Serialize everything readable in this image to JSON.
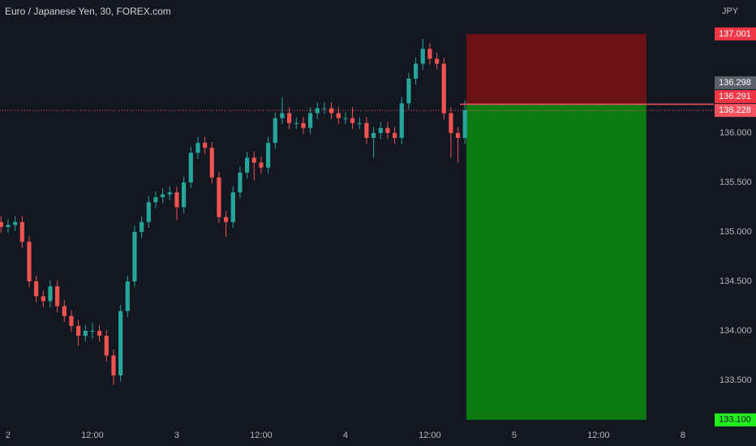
{
  "chart_data": {
    "type": "candlestick",
    "title": "Euro / Japanese Yen, 30, FOREX.com",
    "currency": "JPY",
    "up_color": "#26a69a",
    "down_color": "#ef5350",
    "x": [
      -1,
      0,
      1,
      2,
      3,
      4,
      5,
      6,
      7,
      8,
      9,
      10,
      11,
      12,
      13,
      14,
      15,
      16,
      17,
      18,
      19,
      20,
      21,
      22,
      23,
      24,
      25,
      26,
      27,
      28,
      29,
      30,
      31,
      32,
      33,
      34,
      35,
      36,
      37,
      38,
      39,
      40,
      41,
      42,
      43,
      44,
      45,
      46,
      47,
      48,
      49,
      50,
      51,
      52,
      53,
      54,
      55,
      56,
      57,
      58,
      59,
      60,
      61,
      62,
      63,
      64,
      65
    ],
    "open": [
      135.1,
      135.05,
      135.07,
      135.1,
      134.9,
      134.5,
      134.35,
      134.3,
      134.45,
      134.25,
      134.15,
      134.05,
      133.95,
      134.0,
      134.0,
      133.95,
      133.75,
      133.55,
      134.2,
      134.5,
      135.0,
      135.1,
      135.3,
      135.35,
      135.38,
      135.4,
      135.25,
      135.5,
      135.8,
      135.9,
      135.85,
      135.55,
      135.15,
      135.1,
      135.4,
      135.6,
      135.75,
      135.7,
      135.65,
      135.9,
      136.15,
      136.2,
      136.1,
      136.1,
      136.05,
      136.2,
      136.25,
      136.25,
      136.2,
      136.15,
      136.15,
      136.1,
      136.1,
      135.95,
      136.0,
      136.05,
      136.0,
      135.95,
      136.3,
      136.55,
      136.7,
      136.85,
      136.75,
      136.7,
      136.2,
      136.0,
      135.95
    ],
    "high": [
      135.16,
      135.13,
      135.16,
      135.16,
      134.96,
      134.56,
      134.41,
      134.51,
      134.51,
      134.31,
      134.21,
      134.11,
      134.06,
      134.08,
      134.06,
      134.01,
      133.81,
      134.26,
      134.56,
      135.06,
      135.16,
      135.36,
      135.41,
      135.44,
      135.46,
      135.46,
      135.56,
      135.86,
      135.96,
      135.96,
      135.91,
      135.61,
      135.21,
      135.46,
      135.66,
      135.81,
      135.81,
      135.76,
      135.96,
      136.21,
      136.36,
      136.26,
      136.16,
      136.16,
      136.26,
      136.31,
      136.31,
      136.31,
      136.26,
      136.21,
      136.26,
      136.16,
      136.16,
      136.06,
      136.11,
      136.11,
      136.06,
      136.36,
      136.61,
      136.76,
      136.95,
      136.91,
      136.81,
      136.76,
      136.26,
      136.06,
      136.33
    ],
    "low": [
      134.99,
      134.99,
      135.01,
      134.84,
      134.44,
      134.29,
      134.24,
      134.24,
      134.19,
      134.09,
      133.99,
      133.85,
      133.89,
      133.92,
      133.89,
      133.69,
      133.45,
      133.49,
      134.14,
      134.44,
      134.94,
      135.04,
      135.24,
      135.29,
      135.32,
      135.12,
      135.19,
      135.44,
      135.74,
      135.79,
      135.49,
      135.09,
      134.95,
      135.04,
      135.34,
      135.54,
      135.52,
      135.59,
      135.59,
      135.84,
      136.09,
      136.04,
      136.04,
      135.99,
      135.99,
      136.14,
      136.19,
      136.14,
      136.09,
      136.09,
      136.04,
      136.04,
      135.89,
      135.75,
      135.94,
      135.94,
      135.89,
      135.89,
      136.24,
      136.49,
      136.64,
      136.69,
      136.64,
      136.14,
      135.75,
      135.7,
      135.89
    ],
    "close": [
      135.05,
      135.07,
      135.1,
      134.9,
      134.5,
      134.35,
      134.3,
      134.45,
      134.25,
      134.15,
      134.05,
      133.95,
      134.0,
      134.0,
      133.95,
      133.75,
      133.55,
      134.2,
      134.5,
      135.0,
      135.1,
      135.3,
      135.35,
      135.38,
      135.4,
      135.25,
      135.5,
      135.8,
      135.9,
      135.85,
      135.55,
      135.15,
      135.1,
      135.4,
      135.6,
      135.75,
      135.7,
      135.65,
      135.9,
      136.15,
      136.2,
      136.1,
      136.1,
      136.05,
      136.2,
      136.25,
      136.25,
      136.2,
      136.15,
      136.15,
      136.1,
      136.1,
      135.95,
      136.0,
      136.05,
      136.0,
      135.95,
      136.3,
      136.55,
      136.7,
      136.85,
      136.75,
      136.7,
      136.2,
      136.0,
      135.95,
      136.23
    ],
    "xlim": [
      -1.15,
      100.4
    ],
    "xticks": [
      {
        "value": 0,
        "label": "2"
      },
      {
        "value": 12,
        "label": "12:00"
      },
      {
        "value": 24,
        "label": "3"
      },
      {
        "value": 36,
        "label": "12:00"
      },
      {
        "value": 48,
        "label": "4"
      },
      {
        "value": 60,
        "label": "12:00"
      },
      {
        "value": 72,
        "label": "5"
      },
      {
        "value": 84,
        "label": "12:00"
      },
      {
        "value": 96,
        "label": "8"
      }
    ],
    "ylim": [
      133.041,
      137.344
    ],
    "yticks": [
      {
        "value": 136,
        "label": "136.000"
      },
      {
        "value": 135.5,
        "label": "135.500"
      },
      {
        "value": 135,
        "label": "135.000"
      },
      {
        "value": 134.5,
        "label": "134.500"
      },
      {
        "value": 134,
        "label": "134.000"
      },
      {
        "value": 133.5,
        "label": "133.500"
      }
    ],
    "position": {
      "start": 65.2,
      "end": 90.8,
      "stop": 137.001,
      "entry": 136.291,
      "target": {
        "value": 133.1,
        "label": "133.100"
      },
      "stop_color": "#6b1219",
      "target_color": "#0e7a12",
      "entry_color": "#f7525f"
    },
    "last_price": 136.228,
    "price_labels": [
      {
        "value": 137.001,
        "color": "#f23645"
      },
      {
        "value": 136.298,
        "color": "#5d606b"
      },
      {
        "value": 136.291,
        "color": "#f23645"
      },
      {
        "value": 136.228,
        "color": "#f7525f"
      }
    ],
    "target_label_color": "#22f01e"
  }
}
